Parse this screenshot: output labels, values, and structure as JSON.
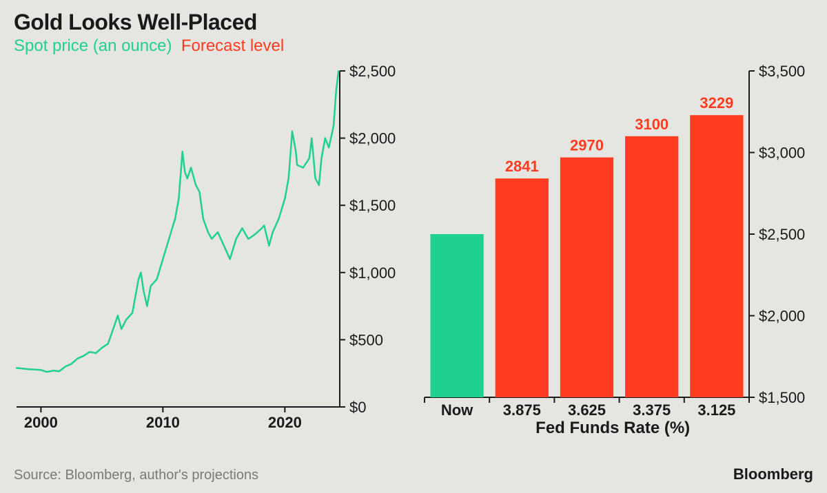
{
  "header": {
    "title": "Gold Looks Well-Placed",
    "legend_spot": "Spot price (an ounce)",
    "legend_forecast": "Forecast level"
  },
  "colors": {
    "background": "#e5e5e1",
    "spot": "#20d090",
    "forecast": "#ff3c1f",
    "text": "#1a1a1a",
    "muted": "#7a7a76",
    "axis": "#1a1a1a",
    "panel_bg": "#e5e5e1"
  },
  "line_chart": {
    "type": "line",
    "x_domain": [
      1998,
      2024.5
    ],
    "y_domain": [
      0,
      2500
    ],
    "y_ticks": [
      0,
      500,
      1000,
      1500,
      2000,
      2500
    ],
    "y_tick_labels": [
      "$0",
      "$500",
      "$1,000",
      "$1,500",
      "$2,000",
      "$2,500"
    ],
    "x_ticks": [
      2000,
      2010,
      2020
    ],
    "x_tick_labels": [
      "2000",
      "2010",
      "2020"
    ],
    "line_color": "#20d090",
    "line_width": 2.5,
    "series": [
      [
        1998,
        290
      ],
      [
        1999,
        280
      ],
      [
        2000,
        275
      ],
      [
        2000.5,
        260
      ],
      [
        2001,
        270
      ],
      [
        2001.5,
        265
      ],
      [
        2002,
        300
      ],
      [
        2002.5,
        320
      ],
      [
        2003,
        360
      ],
      [
        2003.5,
        380
      ],
      [
        2004,
        410
      ],
      [
        2004.5,
        400
      ],
      [
        2005,
        440
      ],
      [
        2005.5,
        470
      ],
      [
        2006,
        600
      ],
      [
        2006.3,
        680
      ],
      [
        2006.6,
        580
      ],
      [
        2007,
        650
      ],
      [
        2007.5,
        700
      ],
      [
        2008,
        950
      ],
      [
        2008.2,
        1000
      ],
      [
        2008.4,
        870
      ],
      [
        2008.7,
        750
      ],
      [
        2009,
        900
      ],
      [
        2009.5,
        950
      ],
      [
        2010,
        1100
      ],
      [
        2010.5,
        1250
      ],
      [
        2011,
        1400
      ],
      [
        2011.3,
        1550
      ],
      [
        2011.6,
        1900
      ],
      [
        2011.8,
        1750
      ],
      [
        2012,
        1700
      ],
      [
        2012.3,
        1780
      ],
      [
        2012.7,
        1650
      ],
      [
        2013,
        1600
      ],
      [
        2013.3,
        1400
      ],
      [
        2013.7,
        1300
      ],
      [
        2014,
        1250
      ],
      [
        2014.5,
        1300
      ],
      [
        2015,
        1200
      ],
      [
        2015.5,
        1100
      ],
      [
        2016,
        1250
      ],
      [
        2016.5,
        1330
      ],
      [
        2017,
        1250
      ],
      [
        2017.5,
        1280
      ],
      [
        2018,
        1320
      ],
      [
        2018.3,
        1350
      ],
      [
        2018.7,
        1200
      ],
      [
        2019,
        1300
      ],
      [
        2019.5,
        1400
      ],
      [
        2020,
        1550
      ],
      [
        2020.3,
        1700
      ],
      [
        2020.6,
        2050
      ],
      [
        2020.9,
        1900
      ],
      [
        2021,
        1800
      ],
      [
        2021.5,
        1780
      ],
      [
        2022,
        1850
      ],
      [
        2022.2,
        2000
      ],
      [
        2022.5,
        1700
      ],
      [
        2022.8,
        1650
      ],
      [
        2023,
        1850
      ],
      [
        2023.3,
        2000
      ],
      [
        2023.6,
        1930
      ],
      [
        2023.9,
        2050
      ],
      [
        2024,
        2100
      ],
      [
        2024.2,
        2350
      ],
      [
        2024.4,
        2500
      ]
    ]
  },
  "bar_chart": {
    "type": "bar",
    "y_domain": [
      1500,
      3500
    ],
    "y_ticks": [
      1500,
      2000,
      2500,
      3000,
      3500
    ],
    "y_tick_labels": [
      "$1,500",
      "$2,000",
      "$2,500",
      "$3,000",
      "$3,500"
    ],
    "x_title": "Fed Funds Rate (%)",
    "categories": [
      "Now",
      "3.875",
      "3.625",
      "3.375",
      "3.125"
    ],
    "values": [
      2500,
      2841,
      2970,
      3100,
      3229
    ],
    "value_labels": [
      "",
      "2841",
      "2970",
      "3100",
      "3229"
    ],
    "bar_colors": [
      "#20d090",
      "#ff3c1f",
      "#ff3c1f",
      "#ff3c1f",
      "#ff3c1f"
    ],
    "bar_width": 0.82
  },
  "footer": {
    "source": "Source: Bloomberg, author's projections",
    "brand": "Bloomberg"
  }
}
